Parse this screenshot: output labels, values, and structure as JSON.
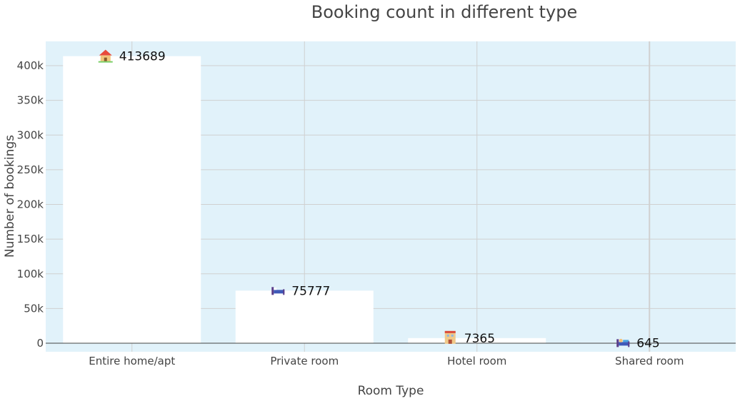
{
  "chart_data": {
    "type": "bar",
    "title": "Booking count in different type",
    "xlabel": "Room Type",
    "ylabel": "Number of bookings",
    "categories": [
      "Entire home/apt",
      "Private room",
      "Hotel room",
      "Shared room"
    ],
    "values": [
      413689,
      75777,
      7365,
      645
    ],
    "data_labels": [
      "413689",
      "75777",
      "7365",
      "645"
    ],
    "label_icons": [
      "house-icon",
      "bed-icon",
      "hotel-icon",
      "bed-with-person-icon"
    ],
    "ylim": [
      -12000,
      434000
    ],
    "y_ticks": [
      0,
      50000,
      100000,
      150000,
      200000,
      250000,
      300000,
      350000,
      400000
    ],
    "y_tick_labels": [
      "0",
      "50k",
      "100k",
      "150k",
      "200k",
      "250k",
      "300k",
      "350k",
      "400k"
    ],
    "grid": true,
    "legend": "none",
    "colors": {
      "plot_background": "#e1f2fa",
      "bar_fill": "#ffffff",
      "grid": "#d0d0d0",
      "zero_line": "#444444"
    }
  }
}
